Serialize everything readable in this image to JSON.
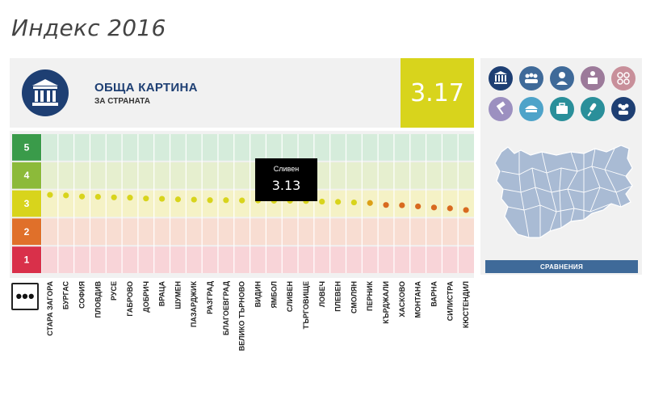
{
  "page": {
    "title": "Индекс 2016"
  },
  "summary": {
    "title": "ОБЩА КАРТИНА",
    "subtitle": "ЗА СТРАНАТА",
    "score": "3.17",
    "score_color": "#d8d41c"
  },
  "tooltip": {
    "name": "Сливен",
    "value": "3.13"
  },
  "more_button": {
    "label": "•••"
  },
  "right_panel": {
    "compare_label": "СРАВНЕНИЯ",
    "icons": [
      {
        "name": "building",
        "color": "#1e3f73"
      },
      {
        "name": "group",
        "color": "#3f6a99"
      },
      {
        "name": "person",
        "color": "#3f6a99"
      },
      {
        "name": "speaker",
        "color": "#9c7a9a"
      },
      {
        "name": "coins",
        "color": "#c88f9a"
      },
      {
        "name": "gavel",
        "color": "#9c90c0"
      },
      {
        "name": "police-cap",
        "color": "#4ea3c9"
      },
      {
        "name": "briefcase",
        "color": "#2a8f9a"
      },
      {
        "name": "microphone",
        "color": "#2a8f9a"
      },
      {
        "name": "people",
        "color": "#1e3f73"
      }
    ]
  },
  "chart_data": {
    "type": "scatter",
    "title": "",
    "xlabel": "",
    "ylabel": "",
    "ylim": [
      0.5,
      5.5
    ],
    "bands": [
      {
        "label": "5",
        "color": "#3a9b4a",
        "fill": "#d5ecdb"
      },
      {
        "label": "4",
        "color": "#8cba3a",
        "fill": "#e6efcf"
      },
      {
        "label": "3",
        "color": "#d8d41c",
        "fill": "#f5f2c6"
      },
      {
        "label": "2",
        "color": "#e0702a",
        "fill": "#f8ddd2"
      },
      {
        "label": "1",
        "color": "#d9304a",
        "fill": "#f8d4d8"
      }
    ],
    "categories": [
      "СТАРА ЗАГОРА",
      "БУРГАС",
      "СОФИЯ",
      "ПЛОВДИВ",
      "РУСЕ",
      "ГАБРОВО",
      "ДОБРИЧ",
      "ВРАЦА",
      "ШУМЕН",
      "ПАЗАРДЖИК",
      "РАЗГРАД",
      "БЛАГОЕВГРАД",
      "ВЕЛИКО ТЪРНОВО",
      "ВИДИН",
      "ЯМБОЛ",
      "СЛИВЕН",
      "ТЪРГОВИЩЕ",
      "ЛОВЕЧ",
      "ПЛЕВЕН",
      "СМОЛЯН",
      "ПЕРНИК",
      "КЪРДЖАЛИ",
      "ХАСКОВО",
      "МОНТАНА",
      "ВАРНА",
      "СИЛИСТРА",
      "КЮСТЕНДИЛ"
    ],
    "values": [
      3.34,
      3.32,
      3.28,
      3.27,
      3.25,
      3.24,
      3.21,
      3.2,
      3.18,
      3.17,
      3.15,
      3.15,
      3.14,
      3.14,
      3.13,
      3.13,
      3.12,
      3.1,
      3.09,
      3.07,
      3.05,
      2.98,
      2.97,
      2.93,
      2.89,
      2.86,
      2.8
    ],
    "point_colors": [
      "#d8d41c",
      "#d8d41c",
      "#d8d41c",
      "#d8d41c",
      "#d8d41c",
      "#d8d41c",
      "#d8d41c",
      "#d8d41c",
      "#d8d41c",
      "#d8d41c",
      "#d8d41c",
      "#d8d41c",
      "#d8d41c",
      "#d8d41c",
      "#d8d41c",
      "#d8d41c",
      "#d8d41c",
      "#d8d41c",
      "#d8d41c",
      "#d8d41c",
      "#dca018",
      "#d86a20",
      "#d86a20",
      "#d86a20",
      "#d86a20",
      "#d86a20",
      "#d86a20"
    ],
    "highlight": "СЛИВЕН"
  }
}
